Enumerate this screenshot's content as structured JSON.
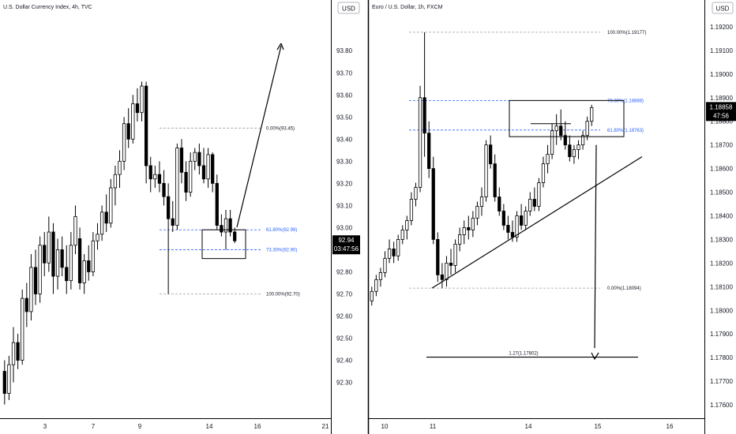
{
  "colors": {
    "candle": "#000000",
    "fib_gray": "#9aa0ab",
    "fib_blue": "#2962ff",
    "price_badge": "#000000",
    "axis_border": "#000000"
  },
  "chart_data": [
    {
      "type": "candlestick",
      "title": "U.S. Dollar Currency Index, 4h, TVC",
      "currency_label": "USD",
      "y_ticks": [
        "93.80",
        "93.70",
        "93.60",
        "93.50",
        "93.40",
        "93.30",
        "93.20",
        "93.10",
        "93.00",
        "92.90",
        "92.80",
        "92.70",
        "92.60",
        "92.50",
        "92.40",
        "92.30"
      ],
      "x_ticks": [
        "3",
        "7",
        "9",
        "14",
        "16",
        "21"
      ],
      "ylim": [
        92.22,
        93.94
      ],
      "candles": [
        [
          92.35,
          92.4,
          92.2,
          92.25
        ],
        [
          92.25,
          92.42,
          92.22,
          92.38
        ],
        [
          92.38,
          92.55,
          92.3,
          92.48
        ],
        [
          92.48,
          92.52,
          92.36,
          92.4
        ],
        [
          92.4,
          92.72,
          92.38,
          92.68
        ],
        [
          92.68,
          92.75,
          92.55,
          92.62
        ],
        [
          92.62,
          92.88,
          92.58,
          92.82
        ],
        [
          92.82,
          92.9,
          92.65,
          92.7
        ],
        [
          92.7,
          92.96,
          92.66,
          92.92
        ],
        [
          92.92,
          92.98,
          92.78,
          92.84
        ],
        [
          92.84,
          93.05,
          92.8,
          92.98
        ],
        [
          92.98,
          93.02,
          92.7,
          92.78
        ],
        [
          92.78,
          92.95,
          92.72,
          92.9
        ],
        [
          92.9,
          92.96,
          92.78,
          92.82
        ],
        [
          92.82,
          92.92,
          92.7,
          92.76
        ],
        [
          92.76,
          92.98,
          92.72,
          92.92
        ],
        [
          92.92,
          93.1,
          92.88,
          93.05
        ],
        [
          92.95,
          93.0,
          92.72,
          92.75
        ],
        [
          92.75,
          92.88,
          92.7,
          92.85
        ],
        [
          92.85,
          92.92,
          92.76,
          92.8
        ],
        [
          92.8,
          92.98,
          92.78,
          92.94
        ],
        [
          92.94,
          93.02,
          92.9,
          92.97
        ],
        [
          92.97,
          93.1,
          92.94,
          93.07
        ],
        [
          93.07,
          93.15,
          92.98,
          93.02
        ],
        [
          93.02,
          93.22,
          93.0,
          93.18
        ],
        [
          93.18,
          93.28,
          93.1,
          93.24
        ],
        [
          93.24,
          93.35,
          93.18,
          93.3
        ],
        [
          93.3,
          93.5,
          93.26,
          93.47
        ],
        [
          93.47,
          93.54,
          93.36,
          93.4
        ],
        [
          93.4,
          93.6,
          93.38,
          93.56
        ],
        [
          93.56,
          93.63,
          93.48,
          93.52
        ],
        [
          93.52,
          93.66,
          93.48,
          93.64
        ],
        [
          93.64,
          93.66,
          93.2,
          93.28
        ],
        [
          93.28,
          93.32,
          93.16,
          93.22
        ],
        [
          93.22,
          93.28,
          93.18,
          93.24
        ],
        [
          93.24,
          93.3,
          93.16,
          93.2
        ],
        [
          93.2,
          93.26,
          93.1,
          93.14
        ],
        [
          93.14,
          93.2,
          92.7,
          93.04
        ],
        [
          93.04,
          93.12,
          92.98,
          93.01
        ],
        [
          93.01,
          93.38,
          92.99,
          93.36
        ],
        [
          93.36,
          93.4,
          93.2,
          93.25
        ],
        [
          93.25,
          93.3,
          93.12,
          93.16
        ],
        [
          93.16,
          93.34,
          93.14,
          93.3
        ],
        [
          93.3,
          93.36,
          93.26,
          93.34
        ],
        [
          93.34,
          93.38,
          93.24,
          93.28
        ],
        [
          93.28,
          93.36,
          93.2,
          93.22
        ],
        [
          93.22,
          93.36,
          93.18,
          93.33
        ],
        [
          93.33,
          93.34,
          93.16,
          93.2
        ],
        [
          93.2,
          93.24,
          92.99,
          93.01
        ],
        [
          93.01,
          93.06,
          92.96,
          92.98
        ],
        [
          92.98,
          93.08,
          92.9,
          93.04
        ],
        [
          93.04,
          93.08,
          92.96,
          92.98
        ],
        [
          92.98,
          93.0,
          92.93,
          92.94
        ]
      ],
      "price_badge": {
        "price": "92.94",
        "countdown": "03:47:56"
      },
      "fib_levels": [
        {
          "label": "0.00%(93.45)",
          "value": 93.45,
          "color": "gray"
        },
        {
          "label": "61.80%(92.99)",
          "value": 92.99,
          "color": "blue"
        },
        {
          "label": "73.30%(92.90)",
          "value": 92.9,
          "color": "blue"
        },
        {
          "label": "100.00%(92.70)",
          "value": 92.7,
          "color": "gray"
        }
      ]
    },
    {
      "type": "candlestick",
      "title": "Euro / U.S. Dollar, 1h, FXCM",
      "currency_label": "USD",
      "y_ticks": [
        "1.19200",
        "1.19100",
        "1.19000",
        "1.18900",
        "1.18800",
        "1.18700",
        "1.18600",
        "1.18500",
        "1.18400",
        "1.18300",
        "1.18200",
        "1.18100",
        "1.18000",
        "1.17900",
        "1.17800",
        "1.17700",
        "1.17600"
      ],
      "x_ticks": [
        "10",
        "11",
        "14",
        "15",
        "16"
      ],
      "ylim": [
        1.1756,
        1.1928
      ],
      "candles": [
        [
          1.1804,
          1.181,
          1.1802,
          1.1808
        ],
        [
          1.1808,
          1.1815,
          1.1806,
          1.1813
        ],
        [
          1.1813,
          1.1818,
          1.181,
          1.1816
        ],
        [
          1.1816,
          1.1825,
          1.1814,
          1.1822
        ],
        [
          1.1822,
          1.183,
          1.182,
          1.1826
        ],
        [
          1.1826,
          1.1829,
          1.182,
          1.1823
        ],
        [
          1.1823,
          1.1832,
          1.1821,
          1.183
        ],
        [
          1.183,
          1.1836,
          1.1828,
          1.1834
        ],
        [
          1.1834,
          1.184,
          1.183,
          1.1838
        ],
        [
          1.1838,
          1.185,
          1.1836,
          1.1847
        ],
        [
          1.1847,
          1.1854,
          1.1844,
          1.1852
        ],
        [
          1.1852,
          1.1895,
          1.185,
          1.189
        ],
        [
          1.189,
          1.19177,
          1.1865,
          1.1875
        ],
        [
          1.1875,
          1.188,
          1.1856,
          1.186
        ],
        [
          1.186,
          1.1865,
          1.1828,
          1.183
        ],
        [
          1.183,
          1.1833,
          1.1812,
          1.1815
        ],
        [
          1.1815,
          1.182,
          1.18094,
          1.1813
        ],
        [
          1.1813,
          1.1823,
          1.181,
          1.182
        ],
        [
          1.182,
          1.1826,
          1.1815,
          1.1819
        ],
        [
          1.1819,
          1.183,
          1.1816,
          1.1828
        ],
        [
          1.1828,
          1.1835,
          1.1825,
          1.1832
        ],
        [
          1.1832,
          1.1838,
          1.1828,
          1.1835
        ],
        [
          1.1835,
          1.184,
          1.183,
          1.1834
        ],
        [
          1.1834,
          1.1842,
          1.1831,
          1.1839
        ],
        [
          1.1839,
          1.1846,
          1.1836,
          1.1844
        ],
        [
          1.1844,
          1.1852,
          1.184,
          1.1848
        ],
        [
          1.1848,
          1.1872,
          1.1846,
          1.187
        ],
        [
          1.187,
          1.1874,
          1.186,
          1.1862
        ],
        [
          1.1862,
          1.1866,
          1.1846,
          1.1848
        ],
        [
          1.1848,
          1.1852,
          1.184,
          1.1842
        ],
        [
          1.1842,
          1.1845,
          1.1834,
          1.1836
        ],
        [
          1.1836,
          1.184,
          1.183,
          1.1833
        ],
        [
          1.1833,
          1.1838,
          1.1829,
          1.1831
        ],
        [
          1.1831,
          1.1842,
          1.1829,
          1.184
        ],
        [
          1.184,
          1.1845,
          1.1834,
          1.1836
        ],
        [
          1.1836,
          1.1844,
          1.1834,
          1.1842
        ],
        [
          1.1842,
          1.185,
          1.184,
          1.1847
        ],
        [
          1.1847,
          1.1852,
          1.1842,
          1.1844
        ],
        [
          1.1844,
          1.1856,
          1.1842,
          1.1854
        ],
        [
          1.1854,
          1.1865,
          1.1852,
          1.1862
        ],
        [
          1.1862,
          1.187,
          1.1858,
          1.1866
        ],
        [
          1.1866,
          1.1879,
          1.1864,
          1.1876
        ],
        [
          1.1876,
          1.1883,
          1.187,
          1.1878
        ],
        [
          1.1878,
          1.1885,
          1.1872,
          1.1874
        ],
        [
          1.1874,
          1.188,
          1.1868,
          1.187
        ],
        [
          1.187,
          1.1874,
          1.1863,
          1.1865
        ],
        [
          1.1865,
          1.187,
          1.1862,
          1.1868
        ],
        [
          1.1868,
          1.1872,
          1.1864,
          1.187
        ],
        [
          1.187,
          1.1876,
          1.1868,
          1.1874
        ],
        [
          1.1874,
          1.1882,
          1.1872,
          1.188
        ],
        [
          1.188,
          1.1887,
          1.1878,
          1.18858
        ]
      ],
      "price_badge": {
        "price": "1.18858",
        "countdown": "47:56"
      },
      "fib_levels": [
        {
          "label": "100.00%(1.19177)",
          "value": 1.19177,
          "color": "gray"
        },
        {
          "label": "73.30%(1.18888)",
          "value": 1.18888,
          "color": "blue"
        },
        {
          "label": "61.80%(1.18763)",
          "value": 1.18763,
          "color": "blue"
        },
        {
          "label": "0.00%(1.18094)",
          "value": 1.18094,
          "color": "gray"
        }
      ],
      "extension_label": "1.27(1.17802)",
      "extension_value": 1.17802
    }
  ]
}
